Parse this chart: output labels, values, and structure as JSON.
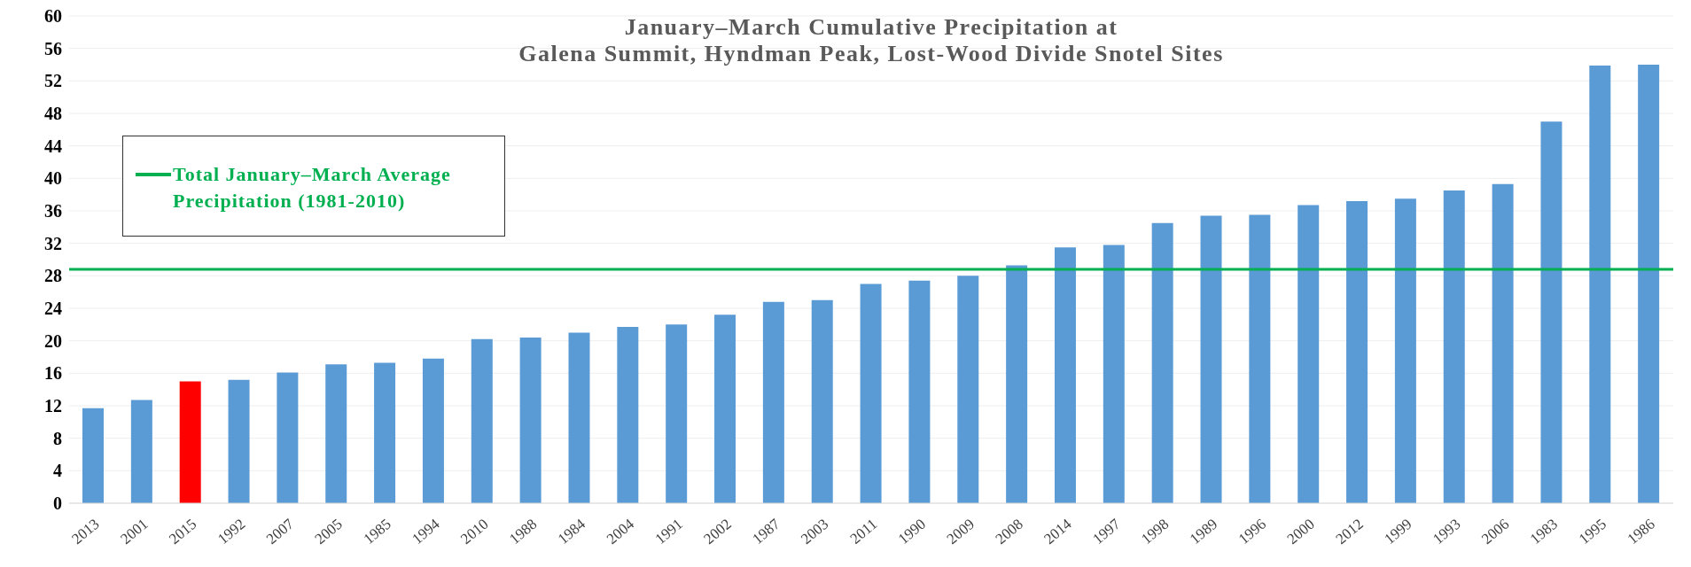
{
  "chart_data": {
    "type": "bar",
    "title": "January–March Cumulative Precipitation at\nGalena Summit, Hyndman Peak, Lost-Wood Divide Snotel Sites",
    "categories": [
      "2013",
      "2001",
      "2015",
      "1992",
      "2007",
      "2005",
      "1985",
      "1994",
      "2010",
      "1988",
      "1984",
      "2004",
      "1991",
      "2002",
      "1987",
      "2003",
      "2011",
      "1990",
      "2009",
      "2008",
      "2014",
      "1997",
      "1998",
      "1989",
      "1996",
      "2000",
      "2012",
      "1999",
      "1993",
      "2006",
      "1983",
      "1995",
      "1986"
    ],
    "values": [
      11.7,
      12.7,
      15,
      15.2,
      16.1,
      17.1,
      17.3,
      17.8,
      20.2,
      20.4,
      21,
      21.7,
      22,
      23.2,
      24.8,
      25,
      27,
      27.4,
      28,
      29.3,
      31.5,
      31.8,
      34.5,
      35.4,
      35.5,
      36.7,
      37.2,
      37.5,
      38.5,
      39.3,
      47,
      53.9,
      54
    ],
    "colors": [
      "#5b9bd5",
      "#5b9bd5",
      "#ff0000",
      "#5b9bd5",
      "#5b9bd5",
      "#5b9bd5",
      "#5b9bd5",
      "#5b9bd5",
      "#5b9bd5",
      "#5b9bd5",
      "#5b9bd5",
      "#5b9bd5",
      "#5b9bd5",
      "#5b9bd5",
      "#5b9bd5",
      "#5b9bd5",
      "#5b9bd5",
      "#5b9bd5",
      "#5b9bd5",
      "#5b9bd5",
      "#5b9bd5",
      "#5b9bd5",
      "#5b9bd5",
      "#5b9bd5",
      "#5b9bd5",
      "#5b9bd5",
      "#5b9bd5",
      "#5b9bd5",
      "#5b9bd5",
      "#5b9bd5",
      "#5b9bd5",
      "#5b9bd5",
      "#5b9bd5"
    ],
    "ylim": [
      0,
      60
    ],
    "yticks": [
      0,
      4,
      8,
      12,
      16,
      20,
      24,
      28,
      32,
      36,
      40,
      44,
      48,
      52,
      56,
      60
    ],
    "ref_lines": [
      {
        "axis": "y",
        "value": 28.8,
        "label": "Total January–March Average\nPrecipitation (1981-2010)",
        "color": "#00b050"
      }
    ],
    "grid": "y",
    "legend": "top left"
  }
}
